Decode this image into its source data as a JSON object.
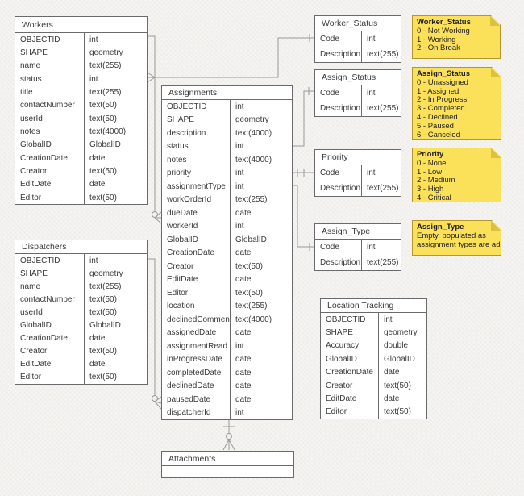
{
  "colors": {
    "canvas_bg": "#f5f4f1",
    "table_fill": "#ffffff",
    "table_border": "#6a6a6a",
    "text": "#383838",
    "connector": "#999999",
    "note_fill": "#fbe05a",
    "note_border": "#b3962e"
  },
  "tables": [
    {
      "id": "workers",
      "title": "Workers",
      "fields": [
        [
          "OBJECTID",
          "int"
        ],
        [
          "SHAPE",
          "geometry"
        ],
        [
          "name",
          "text(255)"
        ],
        [
          "status",
          "int"
        ],
        [
          "title",
          "text(255)"
        ],
        [
          "contactNumber",
          "text(50)"
        ],
        [
          "userId",
          "text(50)"
        ],
        [
          "notes",
          "text(4000)"
        ],
        [
          "GlobalID",
          "GlobalID"
        ],
        [
          "CreationDate",
          "date"
        ],
        [
          "Creator",
          "text(50)"
        ],
        [
          "EditDate",
          "date"
        ],
        [
          "Editor",
          "text(50)"
        ]
      ]
    },
    {
      "id": "dispatchers",
      "title": "Dispatchers",
      "fields": [
        [
          "OBJECTID",
          "int"
        ],
        [
          "SHAPE",
          "geometry"
        ],
        [
          "name",
          "text(255)"
        ],
        [
          "contactNumber",
          "text(50)"
        ],
        [
          "userId",
          "text(50)"
        ],
        [
          "GlobalID",
          "GlobalID"
        ],
        [
          "CreationDate",
          "date"
        ],
        [
          "Creator",
          "text(50)"
        ],
        [
          "EditDate",
          "date"
        ],
        [
          "Editor",
          "text(50)"
        ]
      ]
    },
    {
      "id": "assignments",
      "title": "Assignments",
      "fields": [
        [
          "OBJECTID",
          "int"
        ],
        [
          "SHAPE",
          "geometry"
        ],
        [
          "description",
          "text(4000)"
        ],
        [
          "status",
          "int"
        ],
        [
          "notes",
          "text(4000)"
        ],
        [
          "priority",
          "int"
        ],
        [
          "assignmentType",
          "int"
        ],
        [
          "workOrderId",
          "text(255)"
        ],
        [
          "dueDate",
          "date"
        ],
        [
          "workerId",
          "int"
        ],
        [
          "GlobalID",
          "GlobalID"
        ],
        [
          "CreationDate",
          "date"
        ],
        [
          "Creator",
          "text(50)"
        ],
        [
          "EditDate",
          "date"
        ],
        [
          "Editor",
          "text(50)"
        ],
        [
          "location",
          "text(255)"
        ],
        [
          "declinedComment",
          "text(4000)"
        ],
        [
          "assignedDate",
          "date"
        ],
        [
          "assignmentRead",
          "int"
        ],
        [
          "inProgressDate",
          "date"
        ],
        [
          "completedDate",
          "date"
        ],
        [
          "declinedDate",
          "date"
        ],
        [
          "pausedDate",
          "date"
        ],
        [
          "dispatcherId",
          "int"
        ]
      ]
    },
    {
      "id": "worker_status",
      "title": "Worker_Status",
      "fields": [
        [
          "Code",
          "int"
        ],
        [
          "Description",
          "text(255)"
        ]
      ]
    },
    {
      "id": "assign_status",
      "title": "Assign_Status",
      "fields": [
        [
          "Code",
          "int"
        ],
        [
          "Description",
          "text(255)"
        ]
      ]
    },
    {
      "id": "priority",
      "title": "Priority",
      "fields": [
        [
          "Code",
          "int"
        ],
        [
          "Description",
          "text(255)"
        ]
      ]
    },
    {
      "id": "assign_type",
      "title": "Assign_Type",
      "fields": [
        [
          "Code",
          "int"
        ],
        [
          "Description",
          "text(255)"
        ]
      ]
    },
    {
      "id": "location_tracking",
      "title": "Location Tracking",
      "fields": [
        [
          "OBJECTID",
          "int"
        ],
        [
          "SHAPE",
          "geometry"
        ],
        [
          "Accuracy",
          "double"
        ],
        [
          "GlobalID",
          "GlobalID"
        ],
        [
          "CreationDate",
          "date"
        ],
        [
          "Creator",
          "text(50)"
        ],
        [
          "EditDate",
          "date"
        ],
        [
          "Editor",
          "text(50)"
        ]
      ]
    },
    {
      "id": "attachments",
      "title": "Attachments",
      "fields": []
    }
  ],
  "notes": [
    {
      "id": "worker_status_note",
      "title": "Worker_Status",
      "lines": [
        "0 - Not Working",
        "1 - Working",
        "2 - On Break"
      ]
    },
    {
      "id": "assign_status_note",
      "title": "Assign_Status",
      "lines": [
        "0 - Unassigned",
        "1 - Assigned",
        "2 - In Progress",
        "3 - Completed",
        "4 - Declined",
        "5 - Paused",
        "6 - Canceled"
      ]
    },
    {
      "id": "priority_note",
      "title": "Priority",
      "lines": [
        "0 - None",
        "1 - Low",
        "2 - Medium",
        "3 - High",
        "4 - Critical"
      ]
    },
    {
      "id": "assign_type_note",
      "title": "Assign_Type",
      "lines": [
        "Empty, populated as",
        "assignment types are added"
      ]
    }
  ],
  "relationships": [
    {
      "from": "Worker_Status.Code",
      "to": "Workers.status",
      "cardinality": "one-to-many"
    },
    {
      "from": "Workers.OBJECTID",
      "to": "Assignments.workerId",
      "cardinality": "one-to-zero-or-many"
    },
    {
      "from": "Dispatchers.OBJECTID",
      "to": "Assignments.dispatcherId",
      "cardinality": "one-to-zero-or-many"
    },
    {
      "from": "Assign_Status.Code",
      "to": "Assignments.status",
      "cardinality": "one-to-many"
    },
    {
      "from": "Priority.Code",
      "to": "Assignments.priority",
      "cardinality": "one-to-many"
    },
    {
      "from": "Assign_Type.Code",
      "to": "Assignments.assignmentType",
      "cardinality": "one-to-many"
    },
    {
      "from": "Assignments",
      "to": "Attachments",
      "cardinality": "one-to-zero-or-many"
    }
  ]
}
